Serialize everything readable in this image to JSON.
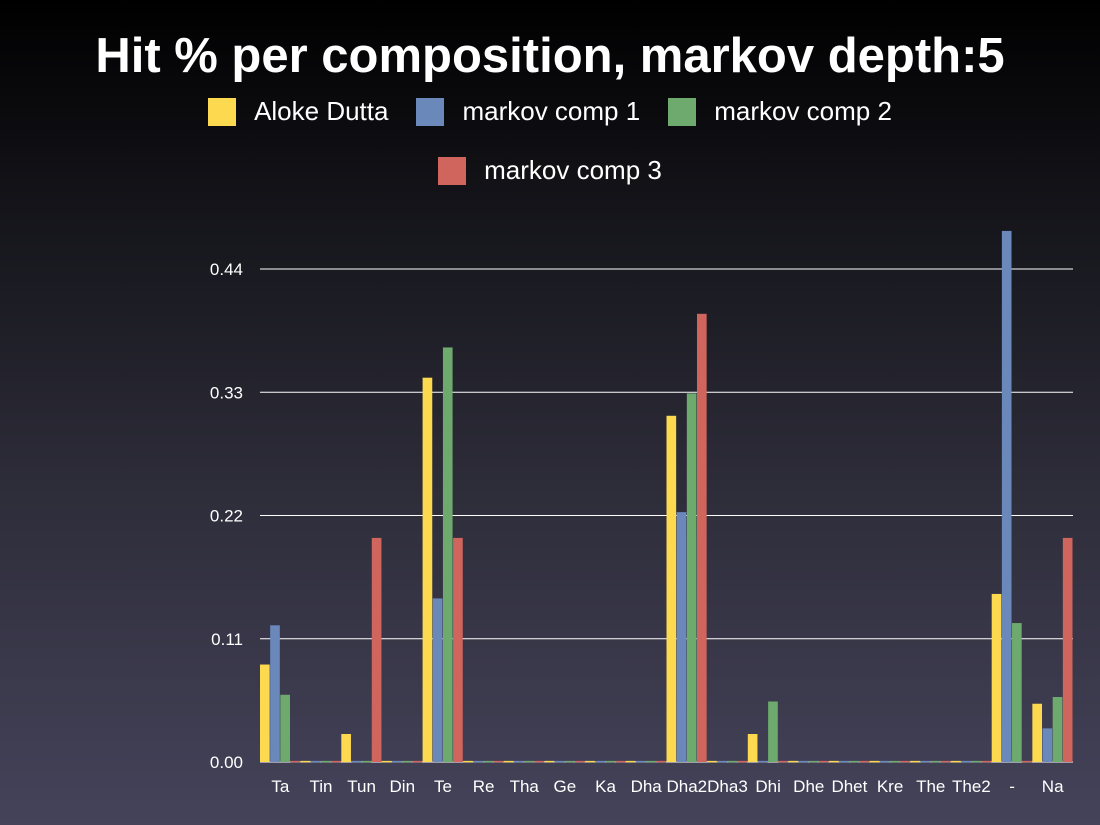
{
  "chart_data": {
    "type": "bar",
    "title": "Hit % per composition, markov depth:5",
    "xlabel": "",
    "ylabel": "",
    "ylim": [
      0,
      0.44
    ],
    "yticks": [
      "0.00",
      "0.11",
      "0.22",
      "0.33",
      "0.44"
    ],
    "grid": true,
    "legend_position": "top",
    "categories": [
      "Ta",
      "Tin",
      "Tun",
      "Din",
      "Te",
      "Re",
      "Tha",
      "Ge",
      "Ka",
      "Dha",
      "Dha2",
      "Dha3",
      "Dhi",
      "Dhe",
      "Dhet",
      "Kre",
      "The",
      "The2",
      "-",
      "Na"
    ],
    "series": [
      {
        "name": "Aloke Dutta",
        "color": "#fcd94f",
        "values": [
          0.087,
          0.001,
          0.025,
          0.001,
          0.343,
          0.001,
          0.001,
          0.001,
          0.001,
          0.001,
          0.309,
          0.001,
          0.025,
          0.001,
          0.001,
          0.001,
          0.001,
          0.001,
          0.15,
          0.052
        ]
      },
      {
        "name": "markov comp 1",
        "color": "#6a88ba",
        "values": [
          0.122,
          0.001,
          0.001,
          0.001,
          0.146,
          0.001,
          0.001,
          0.001,
          0.001,
          0.001,
          0.223,
          0.001,
          0.001,
          0.001,
          0.001,
          0.001,
          0.001,
          0.001,
          0.474,
          0.03
        ]
      },
      {
        "name": "markov comp 2",
        "color": "#6ea96e",
        "values": [
          0.06,
          0.001,
          0.001,
          0.001,
          0.37,
          0.001,
          0.001,
          0.001,
          0.001,
          0.001,
          0.329,
          0.001,
          0.054,
          0.001,
          0.001,
          0.001,
          0.001,
          0.001,
          0.124,
          0.058
        ]
      },
      {
        "name": "markov comp 3",
        "color": "#cf655c",
        "values": [
          0.001,
          0.001,
          0.2,
          0.001,
          0.2,
          0.001,
          0.001,
          0.001,
          0.001,
          0.001,
          0.4,
          0.001,
          0.001,
          0.001,
          0.001,
          0.001,
          0.001,
          0.001,
          0.001,
          0.2
        ]
      }
    ]
  }
}
